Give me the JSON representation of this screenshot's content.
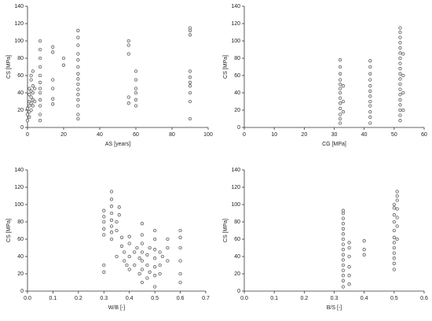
{
  "chart_data": [
    {
      "type": "scatter",
      "x_label": "AS [years]",
      "y_label": "CS [MPa]",
      "color": "#555555",
      "xlim": [
        0,
        100
      ],
      "xticks": [
        0,
        20,
        40,
        60,
        80,
        100
      ],
      "ylim": [
        0,
        140
      ],
      "yticks": [
        0,
        20,
        40,
        60,
        80,
        100,
        120,
        140
      ],
      "x": [
        0,
        0,
        0,
        1,
        1,
        1,
        1,
        1,
        1,
        2,
        2,
        2,
        2,
        2,
        2,
        3,
        3,
        3,
        3,
        3,
        4,
        4,
        7,
        7,
        7,
        7,
        7,
        7,
        7,
        7,
        7,
        7,
        7,
        7,
        14,
        14,
        14,
        14,
        14,
        14,
        20,
        20,
        28,
        28,
        28,
        28,
        28,
        28,
        28,
        28,
        28,
        28,
        28,
        28,
        28,
        28,
        28,
        56,
        56,
        56,
        56,
        56,
        60,
        60,
        60,
        60,
        60,
        60,
        90,
        90,
        90,
        90,
        90,
        90,
        90,
        90,
        90,
        90
      ],
      "values": [
        8,
        15,
        22,
        12,
        18,
        25,
        30,
        38,
        45,
        20,
        28,
        35,
        42,
        55,
        60,
        25,
        32,
        40,
        48,
        65,
        30,
        45,
        8,
        15,
        25,
        32,
        40,
        45,
        52,
        60,
        70,
        80,
        90,
        100,
        27,
        33,
        45,
        55,
        87,
        93,
        72,
        80,
        10,
        15,
        25,
        32,
        38,
        44,
        50,
        56,
        62,
        70,
        78,
        85,
        95,
        104,
        112,
        28,
        35,
        85,
        95,
        100,
        25,
        32,
        40,
        45,
        55,
        65,
        10,
        30,
        40,
        48,
        52,
        58,
        65,
        107,
        112,
        115
      ]
    },
    {
      "type": "scatter",
      "x_label": "CG [MPa]",
      "y_label": "CS [MPa]",
      "color": "#555555",
      "xlim": [
        0,
        60
      ],
      "xticks": [
        0,
        10,
        20,
        30,
        40,
        50,
        60
      ],
      "ylim": [
        0,
        140
      ],
      "yticks": [
        0,
        20,
        40,
        60,
        80,
        100,
        120,
        140
      ],
      "x": [
        32,
        32,
        32,
        32,
        32,
        32,
        32,
        32,
        32,
        32,
        32,
        32,
        32,
        33,
        33,
        33,
        42,
        42,
        42,
        42,
        42,
        42,
        42,
        42,
        42,
        42,
        42,
        42,
        52,
        52,
        52,
        52,
        52,
        52,
        52,
        52,
        52,
        52,
        52,
        52,
        52,
        52,
        52,
        52,
        52,
        52,
        52,
        53,
        53,
        53,
        53
      ],
      "values": [
        5,
        10,
        15,
        22,
        28,
        34,
        40,
        45,
        50,
        55,
        62,
        70,
        78,
        18,
        30,
        48,
        5,
        12,
        18,
        25,
        30,
        36,
        42,
        48,
        55,
        62,
        70,
        77,
        8,
        14,
        20,
        26,
        32,
        38,
        44,
        50,
        56,
        62,
        68,
        74,
        80,
        86,
        92,
        98,
        104,
        110,
        115,
        20,
        40,
        60,
        85
      ]
    },
    {
      "type": "scatter",
      "x_label": "W/B [-]",
      "y_label": "CS [MPa]",
      "color": "#555555",
      "xlim": [
        0,
        0.7
      ],
      "xticks": [
        {
          "value": 0,
          "label": "0.0"
        },
        0.1,
        0.2,
        0.3,
        0.4,
        0.5,
        0.6,
        0.7
      ],
      "ylim": [
        0,
        140
      ],
      "yticks": [
        0,
        20,
        40,
        60,
        80,
        100,
        120,
        140
      ],
      "x": [
        0.3,
        0.3,
        0.3,
        0.3,
        0.3,
        0.3,
        0.3,
        0.33,
        0.33,
        0.33,
        0.33,
        0.33,
        0.33,
        0.33,
        0.33,
        0.35,
        0.35,
        0.35,
        0.36,
        0.36,
        0.37,
        0.37,
        0.38,
        0.38,
        0.39,
        0.4,
        0.4,
        0.4,
        0.4,
        0.42,
        0.42,
        0.43,
        0.44,
        0.44,
        0.45,
        0.45,
        0.45,
        0.45,
        0.45,
        0.45,
        0.45,
        0.47,
        0.47,
        0.47,
        0.48,
        0.48,
        0.5,
        0.5,
        0.5,
        0.5,
        0.5,
        0.5,
        0.5,
        0.52,
        0.52,
        0.52,
        0.53,
        0.55,
        0.55,
        0.55,
        0.6,
        0.6,
        0.6,
        0.6,
        0.6,
        0.6
      ],
      "values": [
        22,
        30,
        65,
        72,
        80,
        86,
        93,
        60,
        68,
        75,
        82,
        90,
        98,
        106,
        115,
        40,
        70,
        80,
        88,
        97,
        52,
        62,
        35,
        45,
        30,
        25,
        40,
        55,
        63,
        30,
        45,
        50,
        20,
        38,
        10,
        25,
        35,
        45,
        55,
        65,
        78,
        15,
        30,
        42,
        22,
        50,
        5,
        18,
        28,
        38,
        48,
        60,
        70,
        20,
        30,
        45,
        40,
        35,
        50,
        60,
        10,
        20,
        35,
        50,
        62,
        70
      ]
    },
    {
      "type": "scatter",
      "x_label": "B/S [-]",
      "y_label": "CS [MPa]",
      "color": "#555555",
      "xlim": [
        0,
        0.6
      ],
      "xticks": [
        {
          "value": 0,
          "label": "0.0"
        },
        0.1,
        0.2,
        0.3,
        0.4,
        0.5,
        0.6
      ],
      "ylim": [
        0,
        140
      ],
      "yticks": [
        0,
        20,
        40,
        60,
        80,
        100,
        120,
        140
      ],
      "x": [
        0.33,
        0.33,
        0.33,
        0.33,
        0.33,
        0.33,
        0.33,
        0.33,
        0.33,
        0.33,
        0.33,
        0.33,
        0.33,
        0.33,
        0.33,
        0.33,
        0.35,
        0.35,
        0.35,
        0.35,
        0.35,
        0.35,
        0.4,
        0.4,
        0.4,
        0.5,
        0.5,
        0.5,
        0.5,
        0.5,
        0.5,
        0.5,
        0.5,
        0.5,
        0.5,
        0.5,
        0.5,
        0.51,
        0.51,
        0.51,
        0.51,
        0.51,
        0.51,
        0.51
      ],
      "values": [
        5,
        12,
        18,
        24,
        30,
        36,
        42,
        48,
        54,
        60,
        66,
        72,
        78,
        84,
        90,
        93,
        8,
        18,
        28,
        40,
        50,
        56,
        42,
        48,
        58,
        25,
        32,
        38,
        44,
        50,
        56,
        62,
        70,
        80,
        88,
        96,
        100,
        60,
        75,
        85,
        95,
        105,
        110,
        115
      ]
    }
  ]
}
